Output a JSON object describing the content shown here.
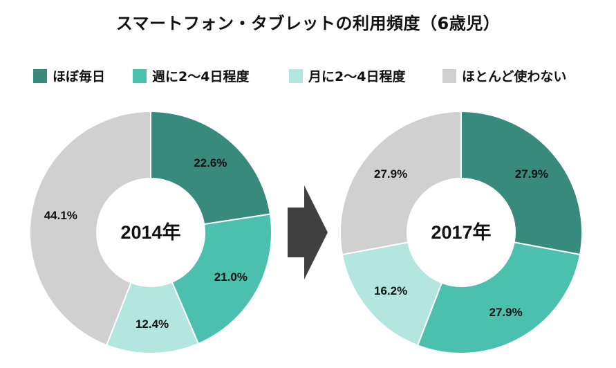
{
  "title": "スマートフォン・タブレットの利用頻度（6歳児）",
  "legend": [
    {
      "label": "ほぼ毎日",
      "color": "#378a7c"
    },
    {
      "label": "週に2〜4日程度",
      "color": "#4bc0ae"
    },
    {
      "label": "月に2〜4日程度",
      "color": "#b3e6de"
    },
    {
      "label": "ほとんど使わない",
      "color": "#d0d0d0"
    }
  ],
  "arrow": {
    "icon": "right-arrow-icon",
    "color": "#404040"
  },
  "chart_data": [
    {
      "type": "pie",
      "center_label": "2014年",
      "categories": [
        "ほぼ毎日",
        "週に2〜4日程度",
        "月に2〜4日程度",
        "ほとんど使わない"
      ],
      "values": [
        22.6,
        21.0,
        12.4,
        44.1
      ],
      "labels": [
        "22.6%",
        "21.0%",
        "12.4%",
        "44.1%"
      ]
    },
    {
      "type": "pie",
      "center_label": "2017年",
      "categories": [
        "ほぼ毎日",
        "週に2〜4日程度",
        "月に2〜4日程度",
        "ほとんど使わない"
      ],
      "values": [
        27.9,
        27.9,
        16.2,
        27.9
      ],
      "labels": [
        "27.9%",
        "27.9%",
        "16.2%",
        "27.9%"
      ]
    }
  ]
}
